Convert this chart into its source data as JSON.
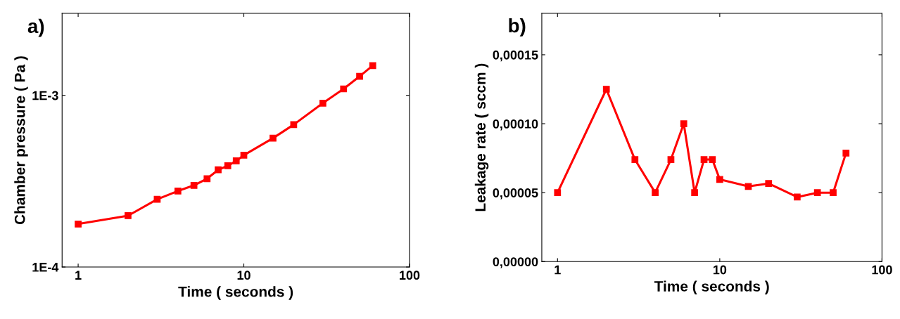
{
  "chart_data": [
    {
      "type": "line",
      "title": "a)",
      "xlabel": "Time ( seconds )",
      "ylabel": "Chamber pressure ( Pa )",
      "log": "xy",
      "marker": "square",
      "grid": false,
      "x": [
        1,
        2,
        3,
        4,
        5,
        6,
        7,
        8,
        9,
        10,
        15,
        20,
        30,
        40,
        50,
        60
      ],
      "series": [
        {
          "color": "#ff0000",
          "values": [
            0.000178,
            0.000199,
            0.000248,
            0.000277,
            0.000299,
            0.000327,
            0.000368,
            0.000389,
            0.000415,
            0.000448,
            0.000563,
            0.000675,
            0.0009,
            0.00109,
            0.00129,
            0.00149
          ]
        }
      ],
      "xlim": [
        0.8,
        100
      ],
      "xticks": [
        1,
        10,
        100
      ],
      "ylim": [
        0.0001,
        0.003
      ],
      "yticks": [
        {
          "value": 0.0001,
          "label": "1E-4"
        },
        {
          "value": 0.001,
          "label": "1E-3"
        }
      ]
    },
    {
      "type": "line",
      "title": "b)",
      "xlabel": "Time ( seconds )",
      "ylabel": "Leakage rate ( sccm )",
      "log": "x",
      "marker": "square",
      "grid": false,
      "x": [
        1,
        2,
        3,
        4,
        5,
        6,
        7,
        8,
        9,
        10,
        15,
        20,
        30,
        40,
        50,
        60
      ],
      "series": [
        {
          "color": "#ff0000",
          "values": [
            5e-05,
            0.000125,
            7.4e-05,
            5e-05,
            7.4e-05,
            0.0001,
            5e-05,
            7.4e-05,
            7.4e-05,
            5.96e-05,
            5.45e-05,
            5.66e-05,
            4.68e-05,
            5e-05,
            5e-05,
            7.87e-05
          ]
        }
      ],
      "xlim": [
        0.8,
        100
      ],
      "xticks": [
        1,
        10,
        100
      ],
      "ylim": [
        0,
        0.00018
      ],
      "yticks": [
        {
          "value": 0,
          "label": "0,00000"
        },
        {
          "value": 5e-05,
          "label": "0,00005"
        },
        {
          "value": 0.0001,
          "label": "0,00010"
        },
        {
          "value": 0.00015,
          "label": "0,00015"
        }
      ]
    }
  ]
}
